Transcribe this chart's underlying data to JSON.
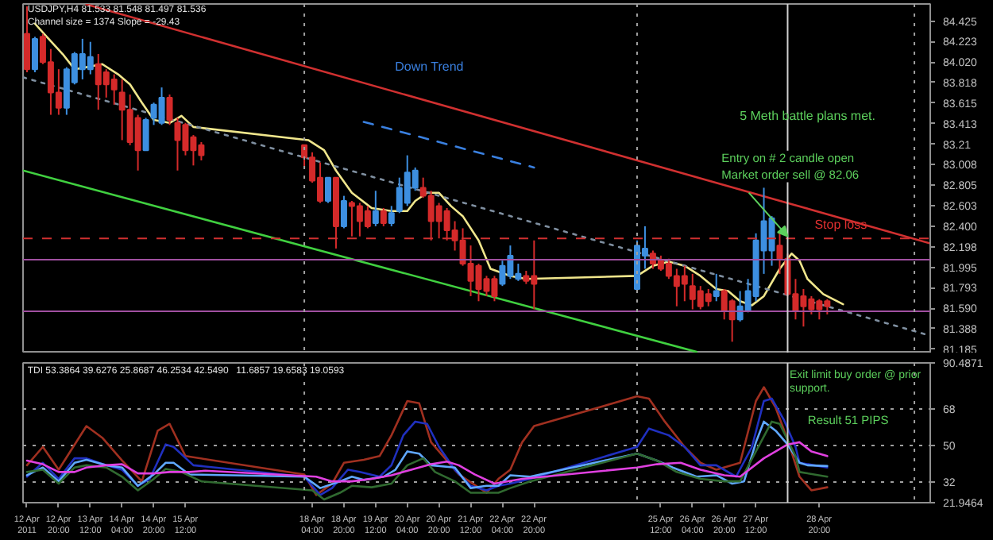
{
  "chart_data": [
    {
      "type": "candlestick",
      "x": [
        "2011-04-12T04:00",
        "2011-04-12T08:00",
        "2011-04-12T12:00",
        "2011-04-12T16:00",
        "2011-04-12T20:00",
        "2011-04-13T00:00",
        "2011-04-13T04:00",
        "2011-04-13T08:00",
        "2011-04-13T12:00",
        "2011-04-13T16:00",
        "2011-04-13T20:00",
        "2011-04-14T00:00",
        "2011-04-14T04:00",
        "2011-04-14T08:00",
        "2011-04-14T12:00",
        "2011-04-14T16:00",
        "2011-04-14T20:00",
        "2011-04-15T00:00",
        "2011-04-15T04:00",
        "2011-04-15T08:00",
        "2011-04-15T12:00",
        "2011-04-15T16:00",
        "2011-04-15T20:00",
        "2011-04-18T00:00",
        "2011-04-18T04:00",
        "2011-04-18T08:00",
        "2011-04-18T12:00",
        "2011-04-18T16:00",
        "2011-04-18T20:00",
        "2011-04-19T00:00",
        "2011-04-19T04:00",
        "2011-04-19T08:00",
        "2011-04-19T12:00",
        "2011-04-19T16:00",
        "2011-04-19T20:00",
        "2011-04-20T00:00",
        "2011-04-20T04:00",
        "2011-04-20T08:00",
        "2011-04-20T12:00",
        "2011-04-20T16:00",
        "2011-04-20T20:00",
        "2011-04-21T00:00",
        "2011-04-21T04:00",
        "2011-04-21T08:00",
        "2011-04-21T12:00",
        "2011-04-21T16:00",
        "2011-04-21T20:00",
        "2011-04-22T00:00",
        "2011-04-22T04:00",
        "2011-04-22T08:00",
        "2011-04-22T12:00",
        "2011-04-22T16:00",
        "2011-04-22T20:00",
        "2011-04-25T00:00",
        "2011-04-25T04:00",
        "2011-04-25T08:00",
        "2011-04-25T12:00",
        "2011-04-25T16:00",
        "2011-04-25T20:00",
        "2011-04-26T00:00",
        "2011-04-26T04:00",
        "2011-04-26T08:00",
        "2011-04-26T12:00",
        "2011-04-26T16:00",
        "2011-04-26T20:00",
        "2011-04-27T00:00",
        "2011-04-27T04:00",
        "2011-04-27T08:00",
        "2011-04-27T12:00",
        "2011-04-27T16:00",
        "2011-04-27T20:00",
        "2011-04-28T00:00",
        "2011-04-28T04:00",
        "2011-04-28T08:00",
        "2011-04-28T12:00",
        "2011-04-28T16:00",
        "2011-04-28T20:00",
        "2011-04-29T00:00"
      ],
      "ohlc": [
        [
          84.3,
          84.57,
          83.92,
          83.95
        ],
        [
          83.95,
          84.27,
          83.92,
          84.25
        ],
        [
          84.27,
          84.3,
          84.0,
          84.02
        ],
        [
          84.02,
          84.15,
          83.5,
          83.72
        ],
        [
          83.72,
          83.95,
          83.5,
          83.57
        ],
        [
          83.57,
          83.97,
          83.5,
          83.95
        ],
        [
          83.82,
          84.12,
          83.8,
          84.1
        ],
        [
          83.95,
          84.25,
          83.85,
          84.1
        ],
        [
          83.95,
          84.22,
          83.9,
          84.07
        ],
        [
          84.0,
          84.1,
          83.55,
          83.8
        ],
        [
          83.92,
          83.95,
          83.67,
          83.8
        ],
        [
          83.85,
          83.9,
          83.6,
          83.75
        ],
        [
          83.72,
          83.85,
          83.25,
          83.55
        ],
        [
          83.55,
          83.7,
          83.2,
          83.23
        ],
        [
          83.47,
          83.5,
          82.95,
          83.15
        ],
        [
          83.15,
          83.47,
          83.15,
          83.45
        ],
        [
          83.47,
          83.62,
          83.4,
          83.6
        ],
        [
          83.42,
          83.77,
          83.4,
          83.67
        ],
        [
          83.67,
          83.7,
          83.4,
          83.45
        ],
        [
          83.42,
          83.47,
          82.95,
          83.25
        ],
        [
          83.4,
          83.42,
          83.1,
          83.15
        ],
        [
          83.28,
          83.3,
          83.0,
          83.15
        ],
        [
          83.2,
          83.23,
          83.05,
          83.1
        ],
        [
          83.2,
          83.2,
          82.98,
          83.08
        ],
        [
          83.08,
          83.13,
          82.83,
          82.85
        ],
        [
          82.88,
          83.03,
          82.63,
          82.65
        ],
        [
          82.65,
          82.88,
          82.63,
          82.88
        ],
        [
          82.88,
          82.88,
          82.18,
          82.4
        ],
        [
          82.4,
          82.7,
          82.38,
          82.65
        ],
        [
          82.63,
          82.65,
          82.3,
          82.6
        ],
        [
          82.6,
          82.63,
          82.3,
          82.45
        ],
        [
          82.55,
          82.6,
          82.38,
          82.4
        ],
        [
          82.43,
          82.75,
          82.4,
          82.55
        ],
        [
          82.55,
          82.58,
          82.4,
          82.43
        ],
        [
          82.43,
          82.6,
          82.4,
          82.53
        ],
        [
          82.55,
          82.88,
          82.53,
          82.78
        ],
        [
          82.63,
          83.1,
          82.6,
          82.93
        ],
        [
          82.78,
          82.98,
          82.75,
          82.95
        ],
        [
          82.78,
          82.88,
          82.68,
          82.7
        ],
        [
          82.7,
          82.75,
          82.26,
          82.45
        ],
        [
          82.6,
          82.63,
          82.28,
          82.45
        ],
        [
          82.55,
          82.58,
          82.26,
          82.36
        ],
        [
          82.36,
          82.45,
          82.16,
          82.26
        ],
        [
          82.26,
          82.38,
          82.01,
          82.03
        ],
        [
          82.03,
          82.21,
          81.71,
          81.86
        ],
        [
          82.01,
          82.03,
          81.66,
          81.78
        ],
        [
          81.88,
          81.91,
          81.71,
          81.76
        ],
        [
          81.88,
          81.91,
          81.66,
          81.71
        ],
        [
          81.83,
          82.06,
          81.81,
          82.01
        ],
        [
          81.91,
          82.21,
          81.88,
          82.11
        ],
        [
          81.88,
          82.03,
          81.86,
          81.93
        ],
        [
          81.91,
          81.96,
          81.83,
          81.86
        ],
        [
          81.91,
          82.26,
          81.58,
          81.83
        ],
        [
          81.78,
          82.26,
          81.76,
          82.21
        ],
        [
          82.11,
          82.4,
          81.98,
          82.18
        ],
        [
          82.13,
          82.16,
          81.98,
          82.03
        ],
        [
          82.06,
          82.11,
          81.96,
          81.98
        ],
        [
          82.03,
          82.08,
          81.88,
          81.91
        ],
        [
          81.91,
          81.98,
          81.61,
          81.81
        ],
        [
          81.91,
          82.01,
          81.66,
          81.83
        ],
        [
          81.81,
          81.93,
          81.58,
          81.68
        ],
        [
          81.76,
          81.81,
          81.58,
          81.61
        ],
        [
          81.73,
          81.78,
          81.61,
          81.66
        ],
        [
          81.71,
          81.93,
          81.66,
          81.76
        ],
        [
          81.76,
          81.78,
          81.48,
          81.56
        ],
        [
          81.66,
          81.68,
          81.26,
          81.48
        ],
        [
          81.48,
          81.76,
          81.46,
          81.61
        ],
        [
          81.56,
          81.88,
          81.55,
          81.76
        ],
        [
          81.71,
          82.33,
          81.66,
          82.26
        ],
        [
          82.16,
          82.78,
          81.93,
          82.45
        ],
        [
          82.16,
          82.5,
          82.01,
          82.48
        ],
        [
          82.21,
          82.33,
          81.93,
          82.08
        ],
        [
          82.08,
          82.13,
          81.71,
          81.73
        ],
        [
          81.73,
          81.88,
          81.48,
          81.56
        ],
        [
          81.71,
          81.78,
          81.41,
          81.61
        ],
        [
          81.68,
          81.71,
          81.53,
          81.58
        ],
        [
          81.66,
          81.68,
          81.48,
          81.58
        ],
        [
          81.66,
          81.68,
          81.53,
          81.61
        ]
      ],
      "colors": [
        "#d42a2a",
        "#3d8fe0",
        "#d42a2a",
        "#d42a2a",
        "#d42a2a",
        "#3d8fe0",
        "#3d8fe0",
        "#3d8fe0",
        "#3d8fe0",
        "#d42a2a",
        "#d42a2a",
        "#d42a2a",
        "#d42a2a",
        "#d42a2a",
        "#d42a2a",
        "#3d8fe0",
        "#3d8fe0",
        "#3d8fe0",
        "#d42a2a",
        "#d42a2a",
        "#d42a2a",
        "#d42a2a",
        "#d42a2a",
        "#d42a2a",
        "#d42a2a",
        "#d42a2a",
        "#3d8fe0",
        "#d42a2a",
        "#3d8fe0",
        "#d42a2a",
        "#d42a2a",
        "#d42a2a",
        "#3d8fe0",
        "#d42a2a",
        "#3d8fe0",
        "#3d8fe0",
        "#3d8fe0",
        "#3d8fe0",
        "#d42a2a",
        "#d42a2a",
        "#d42a2a",
        "#d42a2a",
        "#d42a2a",
        "#d42a2a",
        "#d42a2a",
        "#d42a2a",
        "#d42a2a",
        "#d42a2a",
        "#3d8fe0",
        "#3d8fe0",
        "#3d8fe0",
        "#d42a2a",
        "#d42a2a",
        "#3d8fe0",
        "#3d8fe0",
        "#d42a2a",
        "#d42a2a",
        "#d42a2a",
        "#d42a2a",
        "#d42a2a",
        "#d42a2a",
        "#d42a2a",
        "#d42a2a",
        "#3d8fe0",
        "#d42a2a",
        "#d42a2a",
        "#3d8fe0",
        "#3d8fe0",
        "#3d8fe0",
        "#3d8fe0",
        "#3d8fe0",
        "#d42a2a",
        "#d42a2a",
        "#d42a2a",
        "#d42a2a",
        "#d42a2a",
        "#d42a2a",
        "#d42a2a"
      ],
      "xlim": [
        "2011-04-12T02:00",
        "2011-05-01T04:00"
      ],
      "ylim": [
        81.145,
        84.594
      ],
      "yticks": [
        84.425,
        84.223,
        {
          "value": 84.02,
          "label": "84.020"
        },
        83.818,
        83.615,
        83.413,
        83.21,
        83.008,
        82.805,
        82.603,
        {
          "value": 82.4,
          "label": "82.400"
        },
        82.198,
        81.995,
        81.793,
        {
          "value": 81.59,
          "label": "81.590"
        },
        81.388,
        81.185
      ],
      "tick_labels": "y",
      "grid": false,
      "series": [
        {
          "type": "line",
          "color": "#f0e68c",
          "line_style": "solid",
          "x": [
            "2011-04-12T08:00",
            "2011-04-12T14:00",
            "2011-04-12T22:00",
            "2011-04-13T04:00",
            "2011-04-13T10:00",
            "2011-04-13T18:00",
            "2011-04-14T02:00",
            "2011-04-14T08:00",
            "2011-04-14T14:00",
            "2011-04-14T20:00",
            "2011-04-15T04:00",
            "2011-04-15T10:00",
            "2011-04-15T16:00",
            "2011-04-18T02:00",
            "2011-04-18T10:00",
            "2011-04-18T16:00",
            "2011-04-19T00:00",
            "2011-04-19T10:00",
            "2011-04-19T20:00",
            "2011-04-20T04:00",
            "2011-04-20T08:00",
            "2011-04-20T14:00",
            "2011-04-20T20:00",
            "2011-04-21T02:00",
            "2011-04-21T08:00",
            "2011-04-21T16:00",
            "2011-04-21T22:00",
            "2011-04-22T08:00",
            "2011-04-22T16:00",
            "2011-04-25T00:00",
            "2011-04-25T08:00",
            "2011-04-25T16:00",
            "2011-04-26T00:00",
            "2011-04-26T08:00",
            "2011-04-26T16:00",
            "2011-04-26T22:00",
            "2011-04-27T04:00",
            "2011-04-27T10:00",
            "2011-04-27T16:00",
            "2011-04-28T00:00",
            "2011-04-28T06:00",
            "2011-04-28T10:00",
            "2011-04-28T14:00",
            "2011-04-28T22:00",
            "2011-04-29T08:00"
          ],
          "values": [
            84.4,
            84.27,
            84.1,
            83.95,
            83.97,
            84.0,
            83.9,
            83.8,
            83.62,
            83.45,
            83.42,
            83.49,
            83.38,
            83.25,
            83.15,
            82.95,
            82.73,
            82.58,
            82.55,
            82.55,
            82.65,
            82.73,
            82.73,
            82.6,
            82.5,
            82.26,
            81.98,
            81.91,
            81.88,
            81.91,
            82.01,
            82.05,
            82.01,
            81.91,
            81.78,
            81.76,
            81.66,
            81.62,
            81.71,
            81.98,
            82.13,
            82.06,
            81.88,
            81.73,
            81.63
          ]
        },
        {
          "type": "line",
          "color": "#d03030",
          "line_style": "solid",
          "x": [
            "2011-04-13T10:00",
            "2011-05-01T04:00"
          ],
          "values": [
            84.59,
            82.23
          ]
        },
        {
          "type": "line",
          "color": "#40d040",
          "line_style": "solid",
          "x": [
            "2011-04-12T02:00",
            "2011-04-26T06:00"
          ],
          "values": [
            82.95,
            81.16
          ]
        },
        {
          "type": "line",
          "color": "#7f8fa0",
          "line_style": "dotted",
          "x": [
            "2011-04-12T02:00",
            "2011-05-01T04:00"
          ],
          "values": [
            83.87,
            81.32
          ]
        },
        {
          "type": "line",
          "color": "#3a80e0",
          "line_style": "dashed",
          "x": [
            "2011-04-19T06:00",
            "2011-04-22T20:00"
          ],
          "values": [
            83.43,
            82.98
          ]
        }
      ],
      "ref_lines": [
        {
          "axis": "y",
          "value": 82.28,
          "color": "#d03030",
          "line_style": "dashed"
        },
        {
          "axis": "y",
          "value": 82.07,
          "color": "#a050a0",
          "line_style": "solid"
        },
        {
          "axis": "y",
          "value": 81.56,
          "color": "#a050a0",
          "line_style": "solid"
        },
        {
          "axis": "x",
          "value": "2011-04-18T00:00",
          "color": "#a0a0a0",
          "line_style": "dotted"
        },
        {
          "axis": "x",
          "value": "2011-04-25T00:00",
          "color": "#a0a0a0",
          "line_style": "dotted"
        },
        {
          "axis": "x",
          "value": "2011-04-28T04:00",
          "color": "#d0d0d0",
          "line_style": "solid"
        },
        {
          "axis": "x",
          "value": "2011-04-30T20:00",
          "color": "#a0a0a0",
          "line_style": "dotted"
        }
      ],
      "annotations": [
        "USDJPY,H4  81.533 81.548 81.497 81.536",
        "Channel size = 1374  Slope = -29.43",
        "Down Trend",
        "5 Meth battle plans met.",
        {
          "text": "Entry on # 2 candle open\nMarket order sell  @ 82.06",
          "x": "2011-04-28T04:00",
          "y": 82.3
        },
        {
          "text": "Stop loss",
          "x": "2011-04-28T16:00",
          "y": 82.28
        }
      ]
    },
    {
      "type": "line",
      "xlim": [
        "2011-04-12T02:00",
        "2011-05-01T04:00"
      ],
      "ylim": [
        21.9464,
        90.4871
      ],
      "xticks": [
        {
          "value": "2011-04-12T04:00",
          "label": "12 Apr 2011"
        },
        {
          "value": "2011-04-12T20:00",
          "label": "12 Apr 20:00"
        },
        {
          "value": "2011-04-13T12:00",
          "label": "13 Apr 12:00"
        },
        {
          "value": "2011-04-14T04:00",
          "label": "14 Apr 04:00"
        },
        {
          "value": "2011-04-14T20:00",
          "label": "14 Apr 20:00"
        },
        {
          "value": "2011-04-15T12:00",
          "label": "15 Apr 12:00"
        },
        {
          "value": "2011-04-18T04:00",
          "label": "18 Apr 04:00"
        },
        {
          "value": "2011-04-18T20:00",
          "label": "18 Apr 20:00"
        },
        {
          "value": "2011-04-19T12:00",
          "label": "19 Apr 12:00"
        },
        {
          "value": "2011-04-20T04:00",
          "label": "20 Apr 04:00"
        },
        {
          "value": "2011-04-20T20:00",
          "label": "20 Apr 20:00"
        },
        {
          "value": "2011-04-21T12:00",
          "label": "21 Apr 12:00"
        },
        {
          "value": "2011-04-22T04:00",
          "label": "22 Apr 04:00"
        },
        {
          "value": "2011-04-22T20:00",
          "label": "22 Apr 20:00"
        },
        {
          "value": "2011-04-25T12:00",
          "label": "25 Apr 12:00"
        },
        {
          "value": "2011-04-26T04:00",
          "label": "26 Apr 04:00"
        },
        {
          "value": "2011-04-26T20:00",
          "label": "26 Apr 20:00"
        },
        {
          "value": "2011-04-27T12:00",
          "label": "27 Apr 12:00"
        },
        {
          "value": "2011-04-28T20:00",
          "label": "28 Apr 20:00"
        }
      ],
      "yticks": [
        21.9464,
        32,
        50,
        68,
        90.4871
      ],
      "grid": "y",
      "series": [
        {
          "color": "#a03020",
          "x": [
            "2011-04-12T04:00",
            "2011-04-12T12:00",
            "2011-04-12T20:00",
            "2011-04-13T10:00",
            "2011-04-13T18:00",
            "2011-04-14T04:00",
            "2011-04-14T14:00",
            "2011-04-14T22:00",
            "2011-04-15T04:00",
            "2011-04-15T12:00",
            "2011-04-18T00:00",
            "2011-04-18T06:00",
            "2011-04-18T14:00",
            "2011-04-18T20:00",
            "2011-04-19T06:00",
            "2011-04-19T14:00",
            "2011-04-19T20:00",
            "2011-04-20T04:00",
            "2011-04-20T10:00",
            "2011-04-20T16:00",
            "2011-04-21T06:00",
            "2011-04-21T20:00",
            "2011-04-22T02:00",
            "2011-04-22T08:00",
            "2011-04-22T14:00",
            "2011-04-22T20:00",
            "2011-04-25T00:00",
            "2011-04-25T06:00",
            "2011-04-25T14:00",
            "2011-04-26T00:00",
            "2011-04-26T08:00",
            "2011-04-26T16:00",
            "2011-04-27T04:00",
            "2011-04-27T12:00",
            "2011-04-27T16:00",
            "2011-04-27T22:00",
            "2011-04-28T04:00",
            "2011-04-28T10:00",
            "2011-04-28T16:00",
            "2011-04-29T00:00"
          ],
          "values": [
            40.3,
            49.3,
            38.1,
            59.5,
            53.8,
            42.6,
            32.4,
            57.2,
            60.6,
            44.8,
            35.8,
            25.7,
            31.3,
            41.5,
            43.0,
            44.8,
            55.0,
            71.8,
            70.7,
            51.6,
            35.8,
            26.8,
            33.6,
            38.1,
            51.6,
            59.5,
            74.1,
            73.0,
            61.7,
            49.3,
            41.5,
            38.1,
            41.5,
            71.8,
            78.6,
            68.5,
            52.7,
            34.7,
            28.0,
            29.5
          ]
        },
        {
          "color": "#2030c0",
          "x": [
            "2011-04-12T04:00",
            "2011-04-12T12:00",
            "2011-04-12T20:00",
            "2011-04-13T04:00",
            "2011-04-13T10:00",
            "2011-04-13T20:00",
            "2011-04-14T04:00",
            "2011-04-14T12:00",
            "2011-04-14T18:00",
            "2011-04-15T02:00",
            "2011-04-15T06:00",
            "2011-04-15T16:00",
            "2011-04-18T00:00",
            "2011-04-18T08:00",
            "2011-04-18T14:00",
            "2011-04-18T22:00",
            "2011-04-19T04:00",
            "2011-04-19T14:00",
            "2011-04-19T20:00",
            "2011-04-20T02:00",
            "2011-04-20T08:00",
            "2011-04-20T14:00",
            "2011-04-20T20:00",
            "2011-04-21T04:00",
            "2011-04-21T12:00",
            "2011-04-21T20:00",
            "2011-04-22T02:00",
            "2011-04-22T08:00",
            "2011-04-22T18:00",
            "2011-04-25T00:00",
            "2011-04-25T06:00",
            "2011-04-25T16:00",
            "2011-04-26T00:00",
            "2011-04-26T08:00",
            "2011-04-26T16:00",
            "2011-04-27T02:00",
            "2011-04-27T10:00",
            "2011-04-27T16:00",
            "2011-04-27T20:00",
            "2011-04-28T02:00",
            "2011-04-28T08:00",
            "2011-04-28T10:00",
            "2011-04-29T00:00"
          ],
          "values": [
            34.7,
            41.5,
            33.6,
            43.7,
            43.7,
            40.3,
            38.1,
            30.2,
            33.6,
            50.5,
            49.3,
            40.3,
            34.7,
            25.7,
            29.1,
            38.1,
            37.0,
            34.7,
            40.3,
            55.0,
            61.7,
            60.6,
            49.3,
            38.1,
            30.2,
            28.0,
            30.2,
            31.3,
            33.6,
            49.3,
            58.3,
            55.0,
            49.3,
            40.3,
            40.3,
            34.7,
            49.3,
            71.8,
            73.0,
            62.8,
            49.3,
            41.5,
            39.2
          ]
        },
        {
          "color": "#60a8ff",
          "x": [
            "2011-04-12T04:00",
            "2011-04-12T12:00",
            "2011-04-12T20:00",
            "2011-04-13T04:00",
            "2011-04-13T10:00",
            "2011-04-13T20:00",
            "2011-04-14T04:00",
            "2011-04-14T12:00",
            "2011-04-14T20:00",
            "2011-04-15T02:00",
            "2011-04-15T06:00",
            "2011-04-15T14:00",
            "2011-04-18T00:00",
            "2011-04-18T08:00",
            "2011-04-18T18:00",
            "2011-04-19T00:00",
            "2011-04-19T06:00",
            "2011-04-19T16:00",
            "2011-04-19T22:00",
            "2011-04-20T04:00",
            "2011-04-20T10:00",
            "2011-04-20T16:00",
            "2011-04-21T04:00",
            "2011-04-21T12:00",
            "2011-04-21T20:00",
            "2011-04-22T02:00",
            "2011-04-22T08:00",
            "2011-04-22T18:00",
            "2011-04-25T00:00",
            "2011-04-25T10:00",
            "2011-04-25T18:00",
            "2011-04-26T06:00",
            "2011-04-26T16:00",
            "2011-04-27T00:00",
            "2011-04-27T06:00",
            "2011-04-27T12:00",
            "2011-04-27T16:00",
            "2011-04-27T22:00",
            "2011-04-28T04:00",
            "2011-04-28T10:00",
            "2011-04-28T14:00",
            "2011-04-29T00:00"
          ],
          "values": [
            35.4,
            39.2,
            32.4,
            41.5,
            43.0,
            40.3,
            39.2,
            30.2,
            35.8,
            41.5,
            41.5,
            35.8,
            34.7,
            29.1,
            32.4,
            34.7,
            33.1,
            34.7,
            38.1,
            47.1,
            46.0,
            40.3,
            39.2,
            29.1,
            30.2,
            30.2,
            35.4,
            34.7,
            46.0,
            42.6,
            39.2,
            34.7,
            35.4,
            31.3,
            32.4,
            51.6,
            61.7,
            57.2,
            50.5,
            41.5,
            40.3,
            39.9
          ]
        },
        {
          "color": "#306a30",
          "x": [
            "2011-04-12T04:00",
            "2011-04-12T12:00",
            "2011-04-12T20:00",
            "2011-04-13T04:00",
            "2011-04-13T10:00",
            "2011-04-13T20:00",
            "2011-04-14T04:00",
            "2011-04-14T12:00",
            "2011-04-14T20:00",
            "2011-04-15T02:00",
            "2011-04-15T10:00",
            "2011-04-15T20:00",
            "2011-04-18T04:00",
            "2011-04-18T10:00",
            "2011-04-18T18:00",
            "2011-04-19T00:00",
            "2011-04-19T10:00",
            "2011-04-19T20:00",
            "2011-04-20T04:00",
            "2011-04-20T12:00",
            "2011-04-20T18:00",
            "2011-04-21T04:00",
            "2011-04-21T12:00",
            "2011-04-21T20:00",
            "2011-04-22T02:00",
            "2011-04-22T08:00",
            "2011-04-22T18:00",
            "2011-04-25T00:00",
            "2011-04-25T10:00",
            "2011-04-25T20:00",
            "2011-04-26T08:00",
            "2011-04-26T20:00",
            "2011-04-27T04:00",
            "2011-04-27T12:00",
            "2011-04-27T20:00",
            "2011-04-28T00:00",
            "2011-04-28T08:00",
            "2011-04-28T10:00",
            "2011-04-29T00:00"
          ],
          "values": [
            37.0,
            38.1,
            31.3,
            39.2,
            40.3,
            39.2,
            34.7,
            28.0,
            33.6,
            38.5,
            37.0,
            32.4,
            28.0,
            23.5,
            26.8,
            30.2,
            29.5,
            31.3,
            40.3,
            43.7,
            37.0,
            32.4,
            26.8,
            26.8,
            26.8,
            29.1,
            32.4,
            46.0,
            42.6,
            37.0,
            33.6,
            32.4,
            32.4,
            47.1,
            61.7,
            60.6,
            44.8,
            37.0,
            34.7
          ]
        },
        {
          "color": "#e040e0",
          "x": [
            "2011-04-12T04:00",
            "2011-04-12T12:00",
            "2011-04-12T20:00",
            "2011-04-13T04:00",
            "2011-04-13T10:00",
            "2011-04-13T20:00",
            "2011-04-14T04:00",
            "2011-04-14T12:00",
            "2011-04-14T20:00",
            "2011-04-15T04:00",
            "2011-04-15T14:00",
            "2011-04-15T22:00",
            "2011-04-18T06:00",
            "2011-04-18T14:00",
            "2011-04-19T00:00",
            "2011-04-19T10:00",
            "2011-04-19T20:00",
            "2011-04-20T06:00",
            "2011-04-20T16:00",
            "2011-04-21T00:00",
            "2011-04-21T06:00",
            "2011-04-21T14:00",
            "2011-04-22T00:00",
            "2011-04-22T14:00",
            "2011-04-25T00:00",
            "2011-04-25T10:00",
            "2011-04-25T22:00",
            "2011-04-26T08:00",
            "2011-04-26T20:00",
            "2011-04-27T04:00",
            "2011-04-27T16:00",
            "2011-04-28T04:00",
            "2011-04-28T10:00",
            "2011-04-28T16:00",
            "2011-04-29T00:00"
          ],
          "values": [
            42.6,
            40.8,
            37.0,
            37.0,
            39.2,
            40.3,
            40.8,
            36.3,
            36.3,
            37.0,
            37.0,
            37.6,
            34.7,
            32.4,
            32.4,
            33.6,
            35.4,
            38.1,
            40.8,
            42.1,
            40.3,
            35.8,
            31.3,
            33.6,
            39.2,
            40.8,
            41.5,
            38.1,
            35.4,
            34.7,
            43.7,
            50.5,
            51.6,
            47.1,
            44.8
          ]
        }
      ],
      "ref_lines": [
        {
          "axis": "x",
          "value": "2011-04-18T00:00",
          "color": "#a0a0a0",
          "line_style": "dotted"
        },
        {
          "axis": "x",
          "value": "2011-04-25T00:00",
          "color": "#a0a0a0",
          "line_style": "dotted"
        },
        {
          "axis": "x",
          "value": "2011-04-28T04:00",
          "color": "#d0d0d0",
          "line_style": "solid"
        },
        {
          "axis": "x",
          "value": "2011-04-30T20:00",
          "color": "#a0a0a0",
          "line_style": "dotted"
        }
      ],
      "annotations": [
        "TDI 53.3864 39.6276 25.8687 46.2534 42.5490",
        "11.6857 19.6583 19.0593",
        "Exit limit buy order @ prior\nsupport.",
        "Result 51 PIPS"
      ]
    }
  ]
}
